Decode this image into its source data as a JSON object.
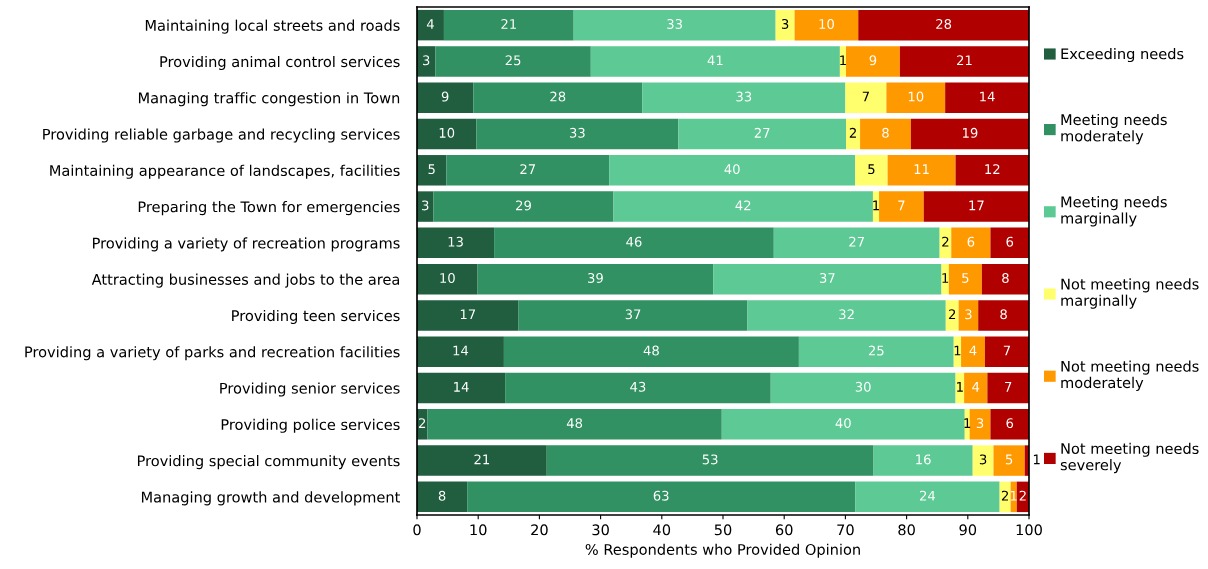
{
  "chart_data": {
    "type": "bar",
    "orientation": "horizontal",
    "stacked": true,
    "grid": false,
    "legend": "right",
    "xlabel": "% Respondents who Provided Opinion",
    "xlim": [
      0,
      100
    ],
    "xticks": [
      0,
      10,
      20,
      30,
      40,
      50,
      60,
      70,
      80,
      90,
      100
    ],
    "categories": [
      "Maintaining local streets and roads",
      "Providing animal control services",
      "Managing traffic congestion in Town",
      "Providing reliable garbage and recycling services",
      "Maintaining appearance of landscapes, facilities",
      "Preparing the Town for emergencies",
      "Providing a variety of recreation programs",
      "Attracting businesses and jobs to the area",
      "Providing teen services",
      "Providing a variety of parks and recreation facilities",
      "Providing senior services",
      "Providing police services",
      "Providing special community events",
      "Managing growth and development"
    ],
    "series": [
      {
        "name": "Exceeding needs",
        "color": "#215e3f",
        "values": [
          4.4,
          3.0,
          9.2,
          9.7,
          4.8,
          2.7,
          12.6,
          9.9,
          16.6,
          14.2,
          14.4,
          1.7,
          21.2,
          8.2
        ],
        "value_labels": [
          "4",
          "3",
          "9",
          "10",
          "5",
          "3",
          "13",
          "10",
          "17",
          "14",
          "14",
          "2",
          "21",
          "8"
        ]
      },
      {
        "name": "Meeting needs moderately",
        "color": "#319162",
        "values": [
          21.2,
          25.4,
          27.6,
          33.0,
          26.6,
          29.4,
          45.7,
          38.5,
          37.4,
          48.2,
          43.4,
          48.1,
          53.4,
          63.4
        ],
        "value_labels": [
          "21",
          "25",
          "28",
          "33",
          "27",
          "29",
          "46",
          "39",
          "37",
          "48",
          "43",
          "48",
          "53",
          "63"
        ]
      },
      {
        "name": "Meeting needs marginally",
        "color": "#5dc994",
        "values": [
          33.0,
          40.7,
          33.2,
          27.4,
          40.2,
          42.4,
          27.1,
          37.3,
          32.4,
          25.3,
          30.2,
          39.7,
          16.2,
          23.6
        ],
        "value_labels": [
          "33",
          "41",
          "33",
          "27",
          "40",
          "42",
          "27",
          "37",
          "32",
          "25",
          "30",
          "40",
          "16",
          "24"
        ]
      },
      {
        "name": "Not meeting needs marginally",
        "color": "#ffff6e",
        "values": [
          3.1,
          1.0,
          6.7,
          2.3,
          5.3,
          1.0,
          1.9,
          1.2,
          2.1,
          1.2,
          1.4,
          0.8,
          3.4,
          1.8
        ],
        "value_labels": [
          "3",
          "1",
          "7",
          "2",
          "5",
          "1",
          "2",
          "1",
          "2",
          "1",
          "1",
          "1",
          "3",
          "2"
        ]
      },
      {
        "name": "Not meeting needs moderately",
        "color": "#ff9900",
        "values": [
          10.4,
          8.8,
          9.6,
          8.3,
          11.1,
          7.3,
          6.4,
          5.4,
          3.2,
          3.9,
          3.8,
          3.4,
          5.1,
          1.0
        ],
        "value_labels": [
          "10",
          "9",
          "10",
          "8",
          "11",
          "7",
          "6",
          "5",
          "3",
          "4",
          "4",
          "3",
          "5",
          "1"
        ]
      },
      {
        "name": "Not meeting needs severely",
        "color": "#b00000",
        "values": [
          27.9,
          21.1,
          13.7,
          19.3,
          12.0,
          17.2,
          6.3,
          7.7,
          8.3,
          7.2,
          6.8,
          6.3,
          0.7,
          2.0
        ],
        "value_labels": [
          "28",
          "21",
          "14",
          "19",
          "12",
          "17",
          "6",
          "8",
          "8",
          "7",
          "7",
          "6",
          "1",
          "2"
        ]
      }
    ]
  }
}
